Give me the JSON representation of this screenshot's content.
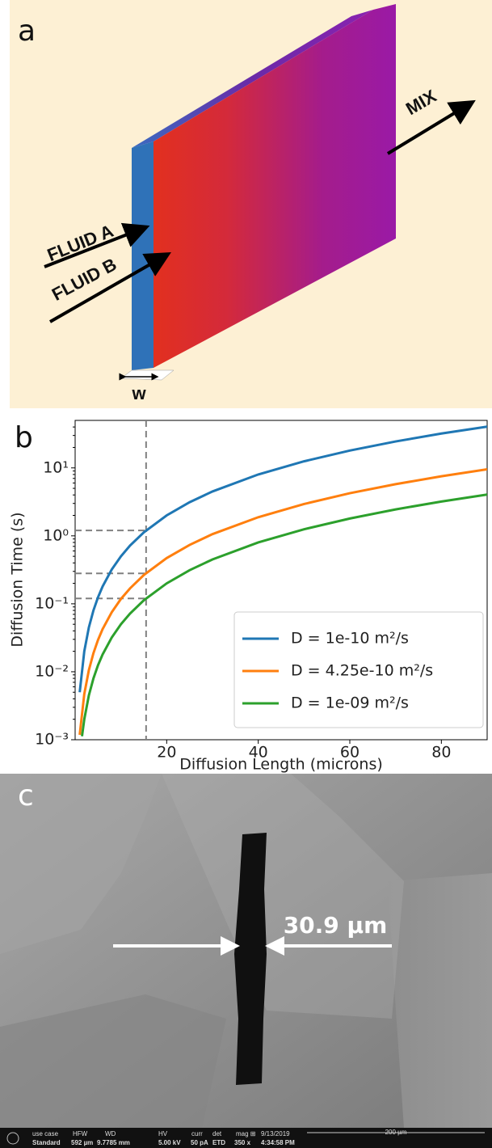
{
  "panel_a": {
    "label": "a",
    "fluid_a": "FLUID A",
    "fluid_b": "FLUID B",
    "mix": "MIX",
    "width_label": "w"
  },
  "chart_data": {
    "type": "line",
    "panel_label": "b",
    "xlabel": "Diffusion Length (microns)",
    "ylabel": "Diffusion Time (s)",
    "xlim": [
      0,
      90
    ],
    "xticks": [
      20,
      40,
      60,
      80
    ],
    "ylim": [
      0.001,
      50
    ],
    "log_y": true,
    "yticks": [
      {
        "value": 0.001,
        "label": "10⁻³"
      },
      {
        "value": 0.01,
        "label": "10⁻²"
      },
      {
        "value": 0.1,
        "label": "10⁻¹"
      },
      {
        "value": 1,
        "label": "10⁰"
      },
      {
        "value": 10,
        "label": "10¹"
      }
    ],
    "legend": "lower right",
    "reference_lines": {
      "x": 15.5,
      "y": [
        1.2,
        0.28,
        0.12
      ],
      "color": "#808080"
    },
    "series": [
      {
        "name": "D = 1e-10 m²/s",
        "color": "#1f77b4",
        "x": [
          1,
          2,
          3,
          4,
          5,
          6,
          8,
          10,
          12,
          15,
          20,
          25,
          30,
          40,
          50,
          60,
          70,
          80,
          90
        ],
        "values": [
          0.005,
          0.02,
          0.045,
          0.08,
          0.125,
          0.18,
          0.32,
          0.5,
          0.72,
          1.125,
          2,
          3.125,
          4.5,
          8,
          12.5,
          18,
          24.5,
          32,
          40.5
        ]
      },
      {
        "name": "D = 4.25e-10 m²/s",
        "color": "#ff7f0e",
        "x": [
          1,
          2,
          3,
          4,
          5,
          6,
          8,
          10,
          12,
          15,
          20,
          25,
          30,
          40,
          50,
          60,
          70,
          80,
          90
        ],
        "values": [
          0.00118,
          0.0047,
          0.0106,
          0.0188,
          0.0294,
          0.0424,
          0.0753,
          0.118,
          0.169,
          0.265,
          0.471,
          0.735,
          1.06,
          1.88,
          2.94,
          4.24,
          5.76,
          7.53,
          9.53
        ]
      },
      {
        "name": "D = 1e-09 m²/s",
        "color": "#2ca02c",
        "x": [
          1.5,
          2,
          3,
          4,
          5,
          6,
          8,
          10,
          12,
          15,
          20,
          25,
          30,
          40,
          50,
          60,
          70,
          80,
          90
        ],
        "values": [
          0.001125,
          0.002,
          0.0045,
          0.008,
          0.0125,
          0.018,
          0.032,
          0.05,
          0.072,
          0.1125,
          0.2,
          0.3125,
          0.45,
          0.8,
          1.25,
          1.8,
          2.45,
          3.2,
          4.05
        ]
      }
    ]
  },
  "panel_c": {
    "label": "c",
    "measurement": "30.9 µm",
    "info_bar": {
      "row1": [
        "use case",
        "HFW",
        "WD",
        "HV",
        "curr",
        "det",
        "mag ⊞",
        "9/13/2019"
      ],
      "row2": [
        "Standard",
        "592 µm",
        "9.7785 mm",
        "5.00 kV",
        "50 pA",
        "ETD",
        "350 x",
        "4:34:58 PM"
      ],
      "scale_bar": "200 µm"
    }
  }
}
